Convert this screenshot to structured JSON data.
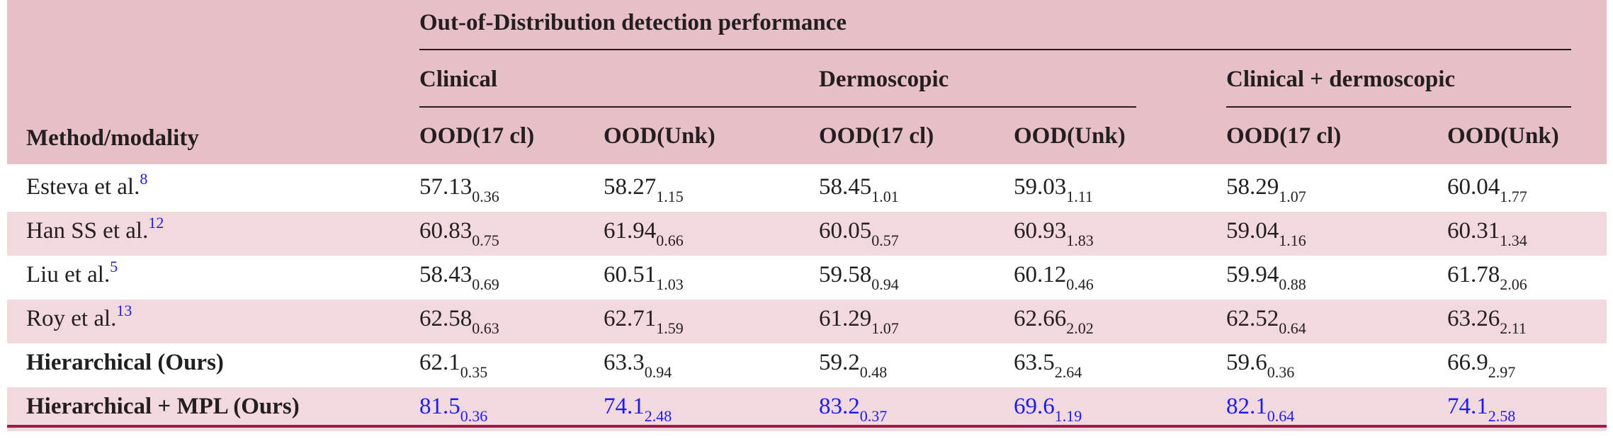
{
  "table": {
    "super_header": "Out-of-Distribution detection performance",
    "groups": [
      "Clinical",
      "Dermoscopic",
      "Clinical + dermoscopic"
    ],
    "method_header": "Method/modality",
    "columns": [
      "OOD(17 cl)",
      "OOD(Unk)",
      "OOD(17 cl)",
      "OOD(Unk)",
      "OOD(17 cl)",
      "OOD(Unk)"
    ],
    "rows": [
      {
        "method": "Esteva et al.",
        "ref": "8",
        "cells": [
          {
            "v": "57.13",
            "sd": "0.36"
          },
          {
            "v": "58.27",
            "sd": "1.15"
          },
          {
            "v": "58.45",
            "sd": "1.01"
          },
          {
            "v": "59.03",
            "sd": "1.11"
          },
          {
            "v": "58.29",
            "sd": "1.07"
          },
          {
            "v": "60.04",
            "sd": "1.77"
          }
        ]
      },
      {
        "method": "Han SS et al.",
        "ref": "12",
        "cells": [
          {
            "v": "60.83",
            "sd": "0.75"
          },
          {
            "v": "61.94",
            "sd": "0.66"
          },
          {
            "v": "60.05",
            "sd": "0.57"
          },
          {
            "v": "60.93",
            "sd": "1.83"
          },
          {
            "v": "59.04",
            "sd": "1.16"
          },
          {
            "v": "60.31",
            "sd": "1.34"
          }
        ]
      },
      {
        "method": "Liu et al.",
        "ref": "5",
        "cells": [
          {
            "v": "58.43",
            "sd": "0.69"
          },
          {
            "v": "60.51",
            "sd": "1.03"
          },
          {
            "v": "59.58",
            "sd": "0.94"
          },
          {
            "v": "60.12",
            "sd": "0.46"
          },
          {
            "v": "59.94",
            "sd": "0.88"
          },
          {
            "v": "61.78",
            "sd": "2.06"
          }
        ]
      },
      {
        "method": "Roy et al.",
        "ref": "13",
        "cells": [
          {
            "v": "62.58",
            "sd": "0.63"
          },
          {
            "v": "62.71",
            "sd": "1.59"
          },
          {
            "v": "61.29",
            "sd": "1.07"
          },
          {
            "v": "62.66",
            "sd": "2.02"
          },
          {
            "v": "62.52",
            "sd": "0.64"
          },
          {
            "v": "63.26",
            "sd": "2.11"
          }
        ]
      },
      {
        "method": "Hierarchical (Ours)",
        "ref": "",
        "cells": [
          {
            "v": "62.1",
            "sd": "0.35"
          },
          {
            "v": "63.3",
            "sd": "0.94"
          },
          {
            "v": "59.2",
            "sd": "0.48"
          },
          {
            "v": "63.5",
            "sd": "2.64"
          },
          {
            "v": "59.6",
            "sd": "0.36"
          },
          {
            "v": "66.9",
            "sd": "2.97"
          }
        ]
      },
      {
        "method": "Hierarchical + MPL (Ours)",
        "ref": "",
        "cells": [
          {
            "v": "81.5",
            "sd": "0.36"
          },
          {
            "v": "74.1",
            "sd": "2.48"
          },
          {
            "v": "83.2",
            "sd": "0.37"
          },
          {
            "v": "69.6",
            "sd": "1.19"
          },
          {
            "v": "82.1",
            "sd": "0.64"
          },
          {
            "v": "74.1",
            "sd": "2.58"
          }
        ]
      }
    ]
  },
  "colors": {
    "header_background": "#e7c0c7",
    "shaded_row": "#f2d9dd",
    "bottom_rule": "#a0194a",
    "highlight_text": "#1a1aff"
  }
}
